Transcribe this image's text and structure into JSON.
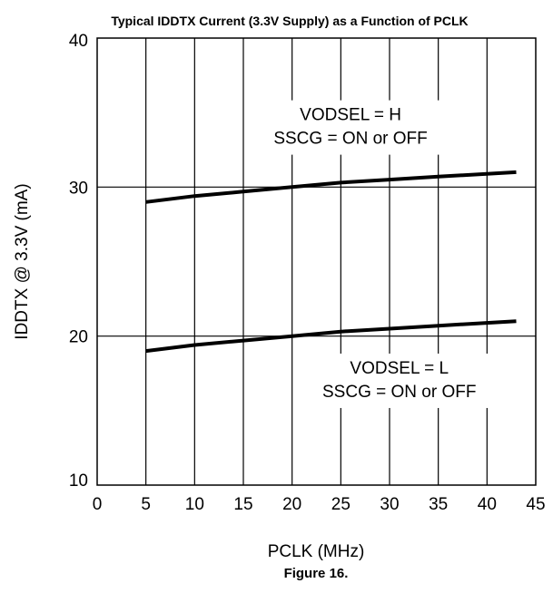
{
  "chart_data": {
    "type": "line",
    "title": "Typical IDDTX Current (3.3V Supply) as a Function of PCLK",
    "xlabel": "PCLK (MHz)",
    "ylabel": "IDDTX @ 3.3V (mA)",
    "caption": "Figure 16.",
    "xlim": [
      0,
      45
    ],
    "ylim": [
      10,
      40
    ],
    "x_ticks": [
      "0",
      "5",
      "10",
      "15",
      "20",
      "25",
      "30",
      "35",
      "40",
      "45"
    ],
    "y_ticks": [
      "10",
      "20",
      "30",
      "40"
    ],
    "grid": true,
    "legend": "none",
    "series": [
      {
        "x": [
          5,
          10,
          15,
          20,
          25,
          30,
          35,
          43
        ],
        "y": [
          29.0,
          29.4,
          29.7,
          30.0,
          30.3,
          30.5,
          30.7,
          31.0
        ]
      },
      {
        "x": [
          5,
          10,
          15,
          20,
          25,
          30,
          35,
          43
        ],
        "y": [
          19.0,
          19.4,
          19.7,
          20.0,
          20.3,
          20.5,
          20.7,
          21.0
        ]
      }
    ],
    "annotations": [
      {
        "lines": [
          "VODSEL = H",
          "SSCG = ON or OFF"
        ],
        "x": 26,
        "y": 34
      },
      {
        "lines": [
          "VODSEL = L",
          "SSCG = ON or OFF"
        ],
        "x": 31,
        "y": 17
      }
    ],
    "colors": {
      "line": "#000000",
      "grid": "#000000",
      "background": "#ffffff"
    }
  }
}
